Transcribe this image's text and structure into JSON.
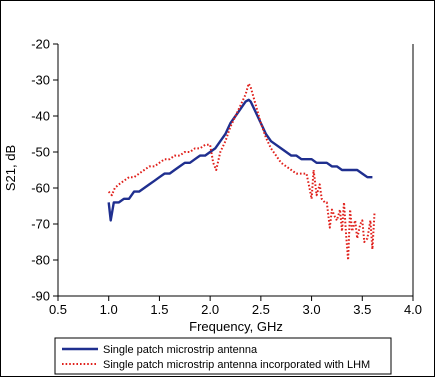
{
  "chart_data": {
    "type": "line",
    "xlabel": "Frequency, GHz",
    "ylabel": "S21, dB",
    "xlim": [
      0.5,
      4.0
    ],
    "ylim": [
      -90,
      -20
    ],
    "xticks": [
      "0.5",
      "1.0",
      "1.5",
      "2.0",
      "2.5",
      "3.0",
      "3.5",
      "4.0"
    ],
    "yticks": [
      "-20",
      "-30",
      "-40",
      "-50",
      "-60",
      "-70",
      "-80",
      "-90"
    ],
    "grid": false,
    "legend_placement": "bottom",
    "series": [
      {
        "name": "Single patch microstrip antenna",
        "color": "#1f2f8f",
        "style": "solid",
        "x": [
          1.0,
          1.02,
          1.05,
          1.1,
          1.15,
          1.2,
          1.25,
          1.3,
          1.35,
          1.4,
          1.45,
          1.5,
          1.55,
          1.6,
          1.65,
          1.7,
          1.75,
          1.8,
          1.85,
          1.9,
          1.95,
          2.0,
          2.05,
          2.1,
          2.15,
          2.2,
          2.25,
          2.3,
          2.35,
          2.38,
          2.4,
          2.45,
          2.5,
          2.55,
          2.6,
          2.65,
          2.7,
          2.75,
          2.8,
          2.85,
          2.9,
          2.95,
          3.0,
          3.05,
          3.1,
          3.15,
          3.2,
          3.25,
          3.3,
          3.35,
          3.4,
          3.45,
          3.5,
          3.55,
          3.6
        ],
        "y": [
          -64,
          -69,
          -64,
          -64,
          -63,
          -63,
          -61,
          -61,
          -60,
          -59,
          -58,
          -57,
          -56,
          -56,
          -55,
          -54,
          -53,
          -53,
          -52,
          -51,
          -51,
          -50,
          -49,
          -47,
          -45,
          -42,
          -40,
          -38,
          -36,
          -35.5,
          -36,
          -39,
          -42,
          -45,
          -47,
          -48,
          -49,
          -50,
          -51,
          -51,
          -52,
          -52,
          -52,
          -53,
          -53,
          -53,
          -54,
          -54,
          -55,
          -55,
          -55,
          -55,
          -56,
          -57,
          -57
        ]
      },
      {
        "name": "Single patch microstrip antenna incorporated with LHM",
        "color": "#e0201b",
        "style": "dotted",
        "x": [
          1.0,
          1.03,
          1.06,
          1.1,
          1.15,
          1.2,
          1.25,
          1.3,
          1.35,
          1.4,
          1.45,
          1.5,
          1.55,
          1.6,
          1.65,
          1.7,
          1.75,
          1.8,
          1.85,
          1.9,
          1.95,
          2.0,
          2.03,
          2.06,
          2.1,
          2.15,
          2.2,
          2.25,
          2.3,
          2.35,
          2.38,
          2.4,
          2.45,
          2.5,
          2.55,
          2.6,
          2.65,
          2.7,
          2.75,
          2.8,
          2.85,
          2.9,
          2.95,
          2.98,
          3.0,
          3.02,
          3.05,
          3.08,
          3.1,
          3.13,
          3.15,
          3.18,
          3.2,
          3.23,
          3.25,
          3.28,
          3.3,
          3.32,
          3.34,
          3.36,
          3.38,
          3.4,
          3.43,
          3.45,
          3.48,
          3.5,
          3.52,
          3.55,
          3.58,
          3.6,
          3.62
        ],
        "y": [
          -61,
          -62,
          -60,
          -59,
          -58,
          -57,
          -57,
          -56,
          -55,
          -54,
          -54,
          -53,
          -52,
          -52,
          -51,
          -51,
          -50,
          -50,
          -49,
          -49,
          -48,
          -48,
          -53,
          -55,
          -50,
          -47,
          -43,
          -40,
          -37,
          -34,
          -31,
          -32,
          -37,
          -42,
          -46,
          -49,
          -51,
          -53,
          -54,
          -55,
          -56,
          -56,
          -56,
          -60,
          -63,
          -55,
          -62,
          -59,
          -63,
          -64,
          -64,
          -71,
          -66,
          -68,
          -69,
          -66,
          -72,
          -64,
          -73,
          -80,
          -66,
          -72,
          -69,
          -74,
          -70,
          -69,
          -75,
          -74,
          -69,
          -77,
          -67
        ]
      }
    ]
  }
}
